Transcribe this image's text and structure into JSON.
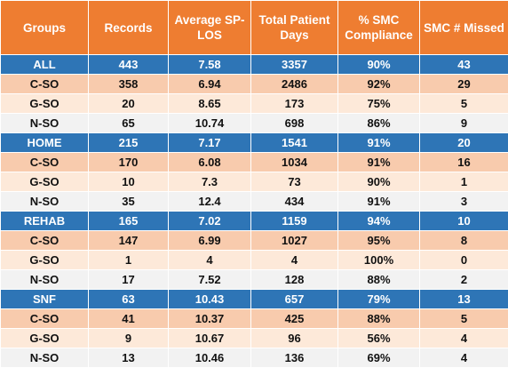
{
  "colors": {
    "header_bg": "#ee7d31",
    "group_bg": "#2e75b6",
    "row_peach": "#f8cbad",
    "row_light": "#fde9d9",
    "row_white": "#f2f2f2",
    "text_dark": "#111111",
    "text_light": "#ffffff"
  },
  "chart_data": {
    "type": "table",
    "columns": [
      "Groups",
      "Records",
      "Average SP-LOS",
      "Total Patient Days",
      "% SMC Compliance",
      "SMC # Missed"
    ],
    "rows": [
      {
        "style": "group",
        "cells": [
          "ALL",
          "443",
          "7.58",
          "3357",
          "90%",
          "43"
        ]
      },
      {
        "style": "peach",
        "cells": [
          "C-SO",
          "358",
          "6.94",
          "2486",
          "92%",
          "29"
        ]
      },
      {
        "style": "light",
        "cells": [
          "G-SO",
          "20",
          "8.65",
          "173",
          "75%",
          "5"
        ]
      },
      {
        "style": "white",
        "cells": [
          "N-SO",
          "65",
          "10.74",
          "698",
          "86%",
          "9"
        ]
      },
      {
        "style": "group",
        "cells": [
          "HOME",
          "215",
          "7.17",
          "1541",
          "91%",
          "20"
        ]
      },
      {
        "style": "peach",
        "cells": [
          "C-SO",
          "170",
          "6.08",
          "1034",
          "91%",
          "16"
        ]
      },
      {
        "style": "light",
        "cells": [
          "G-SO",
          "10",
          "7.3",
          "73",
          "90%",
          "1"
        ]
      },
      {
        "style": "white",
        "cells": [
          "N-SO",
          "35",
          "12.4",
          "434",
          "91%",
          "3"
        ]
      },
      {
        "style": "group",
        "cells": [
          "REHAB",
          "165",
          "7.02",
          "1159",
          "94%",
          "10"
        ]
      },
      {
        "style": "peach",
        "cells": [
          "C-SO",
          "147",
          "6.99",
          "1027",
          "95%",
          "8"
        ]
      },
      {
        "style": "light",
        "cells": [
          "G-SO",
          "1",
          "4",
          "4",
          "100%",
          "0"
        ]
      },
      {
        "style": "white",
        "cells": [
          "N-SO",
          "17",
          "7.52",
          "128",
          "88%",
          "2"
        ]
      },
      {
        "style": "group",
        "cells": [
          "SNF",
          "63",
          "10.43",
          "657",
          "79%",
          "13"
        ]
      },
      {
        "style": "peach",
        "cells": [
          "C-SO",
          "41",
          "10.37",
          "425",
          "88%",
          "5"
        ]
      },
      {
        "style": "light",
        "cells": [
          "G-SO",
          "9",
          "10.67",
          "96",
          "56%",
          "4"
        ]
      },
      {
        "style": "white",
        "cells": [
          "N-SO",
          "13",
          "10.46",
          "136",
          "69%",
          "4"
        ]
      }
    ]
  }
}
